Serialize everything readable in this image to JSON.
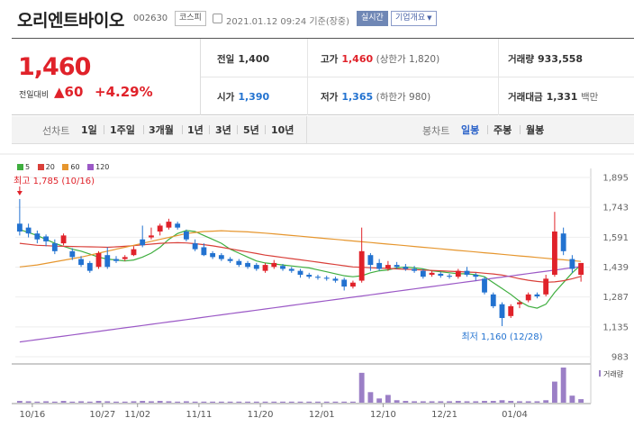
{
  "header": {
    "stock_name": "오리엔트바이오",
    "stock_code": "002630",
    "market_badge": "코스피",
    "timestamp": "2021.01.12 09:24 기준(장중)",
    "realtime_badge": "실시간",
    "company_info_button": "기업개요"
  },
  "summary": {
    "current_price": "1,460",
    "change_label": "전일대비",
    "change_value": "▲60",
    "change_percent": "+4.29%",
    "prev_close_label": "전일",
    "prev_close": "1,400",
    "open_label": "시가",
    "open": "1,390",
    "high_label": "고가",
    "high": "1,460",
    "upper_limit": "(상한가 1,820)",
    "low_label": "저가",
    "low": "1,365",
    "lower_limit": "(하한가 980)",
    "volume_label": "거래량",
    "volume": "933,558",
    "amount_label": "거래대금",
    "amount": "1,331",
    "amount_unit": "백만"
  },
  "period_bar": {
    "line_chart_label": "선차트",
    "line_periods": [
      "1일",
      "1주일",
      "3개월",
      "1년",
      "3년",
      "5년",
      "10년"
    ],
    "candle_chart_label": "봉차트",
    "candle_periods": [
      "일봉",
      "주봉",
      "월봉"
    ],
    "active_candle_period": "일봉"
  },
  "legend": [
    {
      "label": "5",
      "color": "#3fae3f"
    },
    {
      "label": "20",
      "color": "#d9403a"
    },
    {
      "label": "60",
      "color": "#e6962e"
    },
    {
      "label": "120",
      "color": "#9b59c6"
    }
  ],
  "chart_data": {
    "type": "candlestick",
    "y_ticks": [
      "1,895",
      "1,743",
      "1,591",
      "1,439",
      "1,287",
      "1,135",
      "983"
    ],
    "ylim": [
      983,
      1895
    ],
    "x_tick_labels": [
      "10/16",
      "10/27",
      "11/02",
      "11/11",
      "11/20",
      "12/01",
      "12/10",
      "12/21",
      "01/04"
    ],
    "high_annotation": "최고 1,785 (10/16)",
    "low_annotation": "최저 1,160 (12/28)",
    "volume_label": "거래량",
    "candles": [
      {
        "o": 1660,
        "c": 1620,
        "h": 1785,
        "l": 1600
      },
      {
        "o": 1640,
        "c": 1610,
        "h": 1660,
        "l": 1590
      },
      {
        "o": 1610,
        "c": 1580,
        "h": 1625,
        "l": 1560
      },
      {
        "o": 1595,
        "c": 1570,
        "h": 1605,
        "l": 1545
      },
      {
        "o": 1560,
        "c": 1520,
        "h": 1580,
        "l": 1505
      },
      {
        "o": 1560,
        "c": 1600,
        "h": 1610,
        "l": 1550
      },
      {
        "o": 1520,
        "c": 1490,
        "h": 1535,
        "l": 1475
      },
      {
        "o": 1480,
        "c": 1450,
        "h": 1495,
        "l": 1440
      },
      {
        "o": 1460,
        "c": 1420,
        "h": 1470,
        "l": 1410
      },
      {
        "o": 1440,
        "c": 1510,
        "h": 1520,
        "l": 1430
      },
      {
        "o": 1500,
        "c": 1440,
        "h": 1540,
        "l": 1430
      },
      {
        "o": 1480,
        "c": 1470,
        "h": 1495,
        "l": 1460
      },
      {
        "o": 1480,
        "c": 1490,
        "h": 1500,
        "l": 1470
      },
      {
        "o": 1500,
        "c": 1530,
        "h": 1545,
        "l": 1495
      },
      {
        "o": 1580,
        "c": 1550,
        "h": 1650,
        "l": 1540
      },
      {
        "o": 1590,
        "c": 1600,
        "h": 1640,
        "l": 1580
      },
      {
        "o": 1620,
        "c": 1650,
        "h": 1660,
        "l": 1600
      },
      {
        "o": 1640,
        "c": 1670,
        "h": 1685,
        "l": 1630
      },
      {
        "o": 1660,
        "c": 1640,
        "h": 1670,
        "l": 1630
      },
      {
        "o": 1620,
        "c": 1580,
        "h": 1630,
        "l": 1570
      },
      {
        "o": 1560,
        "c": 1530,
        "h": 1580,
        "l": 1520
      },
      {
        "o": 1540,
        "c": 1500,
        "h": 1560,
        "l": 1495
      },
      {
        "o": 1510,
        "c": 1490,
        "h": 1520,
        "l": 1480
      },
      {
        "o": 1500,
        "c": 1480,
        "h": 1510,
        "l": 1470
      },
      {
        "o": 1480,
        "c": 1470,
        "h": 1490,
        "l": 1460
      },
      {
        "o": 1470,
        "c": 1450,
        "h": 1480,
        "l": 1440
      },
      {
        "o": 1460,
        "c": 1440,
        "h": 1470,
        "l": 1430
      },
      {
        "o": 1450,
        "c": 1430,
        "h": 1460,
        "l": 1420
      },
      {
        "o": 1420,
        "c": 1450,
        "h": 1460,
        "l": 1410
      },
      {
        "o": 1440,
        "c": 1460,
        "h": 1475,
        "l": 1430
      },
      {
        "o": 1445,
        "c": 1430,
        "h": 1455,
        "l": 1420
      },
      {
        "o": 1430,
        "c": 1420,
        "h": 1440,
        "l": 1410
      },
      {
        "o": 1420,
        "c": 1400,
        "h": 1430,
        "l": 1385
      },
      {
        "o": 1400,
        "c": 1390,
        "h": 1410,
        "l": 1380
      },
      {
        "o": 1390,
        "c": 1385,
        "h": 1400,
        "l": 1375
      },
      {
        "o": 1385,
        "c": 1380,
        "h": 1395,
        "l": 1370
      },
      {
        "o": 1380,
        "c": 1370,
        "h": 1390,
        "l": 1360
      },
      {
        "o": 1375,
        "c": 1340,
        "h": 1385,
        "l": 1320
      },
      {
        "o": 1340,
        "c": 1360,
        "h": 1370,
        "l": 1330
      },
      {
        "o": 1370,
        "c": 1520,
        "h": 1640,
        "l": 1360
      },
      {
        "o": 1500,
        "c": 1450,
        "h": 1510,
        "l": 1420
      },
      {
        "o": 1460,
        "c": 1430,
        "h": 1480,
        "l": 1420
      },
      {
        "o": 1430,
        "c": 1450,
        "h": 1470,
        "l": 1420
      },
      {
        "o": 1450,
        "c": 1440,
        "h": 1465,
        "l": 1430
      },
      {
        "o": 1440,
        "c": 1430,
        "h": 1455,
        "l": 1420
      },
      {
        "o": 1430,
        "c": 1420,
        "h": 1445,
        "l": 1410
      },
      {
        "o": 1420,
        "c": 1390,
        "h": 1430,
        "l": 1380
      },
      {
        "o": 1400,
        "c": 1410,
        "h": 1420,
        "l": 1390
      },
      {
        "o": 1405,
        "c": 1395,
        "h": 1415,
        "l": 1385
      },
      {
        "o": 1395,
        "c": 1390,
        "h": 1405,
        "l": 1380
      },
      {
        "o": 1390,
        "c": 1420,
        "h": 1430,
        "l": 1380
      },
      {
        "o": 1420,
        "c": 1400,
        "h": 1440,
        "l": 1390
      },
      {
        "o": 1400,
        "c": 1390,
        "h": 1410,
        "l": 1370
      },
      {
        "o": 1380,
        "c": 1310,
        "h": 1390,
        "l": 1300
      },
      {
        "o": 1300,
        "c": 1240,
        "h": 1310,
        "l": 1230
      },
      {
        "o": 1250,
        "c": 1180,
        "h": 1260,
        "l": 1160
      },
      {
        "o": 1190,
        "c": 1240,
        "h": 1250,
        "l": 1180
      },
      {
        "o": 1250,
        "c": 1260,
        "h": 1270,
        "l": 1230
      },
      {
        "o": 1270,
        "c": 1300,
        "h": 1310,
        "l": 1260
      },
      {
        "o": 1300,
        "c": 1290,
        "h": 1310,
        "l": 1280
      },
      {
        "o": 1300,
        "c": 1380,
        "h": 1400,
        "l": 1290
      },
      {
        "o": 1400,
        "c": 1620,
        "h": 1720,
        "l": 1390
      },
      {
        "o": 1610,
        "c": 1520,
        "h": 1640,
        "l": 1500
      },
      {
        "o": 1480,
        "c": 1430,
        "h": 1500,
        "l": 1410
      },
      {
        "o": 1400,
        "c": 1460,
        "h": 1460,
        "l": 1365
      }
    ],
    "volumes": [
      0.05,
      0.04,
      0.03,
      0.04,
      0.03,
      0.05,
      0.03,
      0.04,
      0.03,
      0.05,
      0.04,
      0.03,
      0.03,
      0.04,
      0.05,
      0.04,
      0.05,
      0.04,
      0.03,
      0.04,
      0.03,
      0.03,
      0.03,
      0.03,
      0.03,
      0.03,
      0.03,
      0.03,
      0.03,
      0.03,
      0.03,
      0.03,
      0.03,
      0.03,
      0.03,
      0.03,
      0.03,
      0.03,
      0.03,
      0.85,
      0.3,
      0.12,
      0.22,
      0.07,
      0.05,
      0.04,
      0.04,
      0.04,
      0.04,
      0.04,
      0.05,
      0.04,
      0.04,
      0.05,
      0.05,
      0.07,
      0.05,
      0.04,
      0.04,
      0.04,
      0.07,
      0.6,
      1.0,
      0.2,
      0.1
    ],
    "ma": {
      "5": [
        1630,
        1615,
        1600,
        1580,
        1560,
        1545,
        1530,
        1520,
        1505,
        1490,
        1480,
        1475,
        1470,
        1475,
        1490,
        1510,
        1540,
        1580,
        1610,
        1625,
        1620,
        1600,
        1580,
        1560,
        1530,
        1510,
        1490,
        1470,
        1460,
        1455,
        1450,
        1445,
        1440,
        1435,
        1425,
        1415,
        1405,
        1395,
        1390,
        1395,
        1410,
        1420,
        1425,
        1435,
        1440,
        1435,
        1430,
        1420,
        1415,
        1410,
        1405,
        1405,
        1400,
        1390,
        1360,
        1330,
        1300,
        1265,
        1240,
        1230,
        1250,
        1310,
        1360,
        1410,
        1450
      ],
      "20": [
        1560,
        1555,
        1550,
        1548,
        1546,
        1545,
        1544,
        1543,
        1542,
        1541,
        1540,
        1542,
        1545,
        1548,
        1552,
        1556,
        1560,
        1562,
        1563,
        1562,
        1558,
        1553,
        1547,
        1540,
        1532,
        1524,
        1516,
        1508,
        1500,
        1494,
        1488,
        1482,
        1476,
        1470,
        1464,
        1458,
        1452,
        1446,
        1440,
        1438,
        1436,
        1434,
        1432,
        1430,
        1428,
        1426,
        1424,
        1422,
        1420,
        1418,
        1416,
        1414,
        1412,
        1408,
        1404,
        1398,
        1390,
        1380,
        1372,
        1366,
        1362,
        1364,
        1370,
        1380,
        1392
      ],
      "60": [
        1440,
        1445,
        1450,
        1458,
        1466,
        1474,
        1482,
        1490,
        1500,
        1510,
        1520,
        1530,
        1540,
        1550,
        1560,
        1570,
        1580,
        1590,
        1600,
        1610,
        1615,
        1620,
        1622,
        1624,
        1622,
        1620,
        1618,
        1615,
        1612,
        1608,
        1604,
        1600,
        1596,
        1592,
        1588,
        1584,
        1580,
        1576,
        1572,
        1568,
        1564,
        1560,
        1556,
        1552,
        1548,
        1544,
        1540,
        1536,
        1532,
        1528,
        1524,
        1520,
        1516,
        1512,
        1508,
        1504,
        1500,
        1496,
        1492,
        1488,
        1484,
        1480,
        1476,
        1472,
        1468
      ],
      "120": [
        1058,
        1064,
        1070,
        1076,
        1082,
        1088,
        1094,
        1100,
        1106,
        1112,
        1118,
        1124,
        1130,
        1136,
        1142,
        1148,
        1154,
        1160,
        1166,
        1172,
        1178,
        1184,
        1190,
        1196,
        1202,
        1208,
        1214,
        1220,
        1226,
        1232,
        1238,
        1244,
        1250,
        1256,
        1262,
        1268,
        1274,
        1280,
        1286,
        1292,
        1298,
        1304,
        1310,
        1316,
        1322,
        1328,
        1334,
        1340,
        1346,
        1352,
        1358,
        1364,
        1370,
        1376,
        1382,
        1388,
        1394,
        1400,
        1406,
        1412,
        1418,
        1424,
        1430,
        1436,
        1442
      ]
    }
  }
}
